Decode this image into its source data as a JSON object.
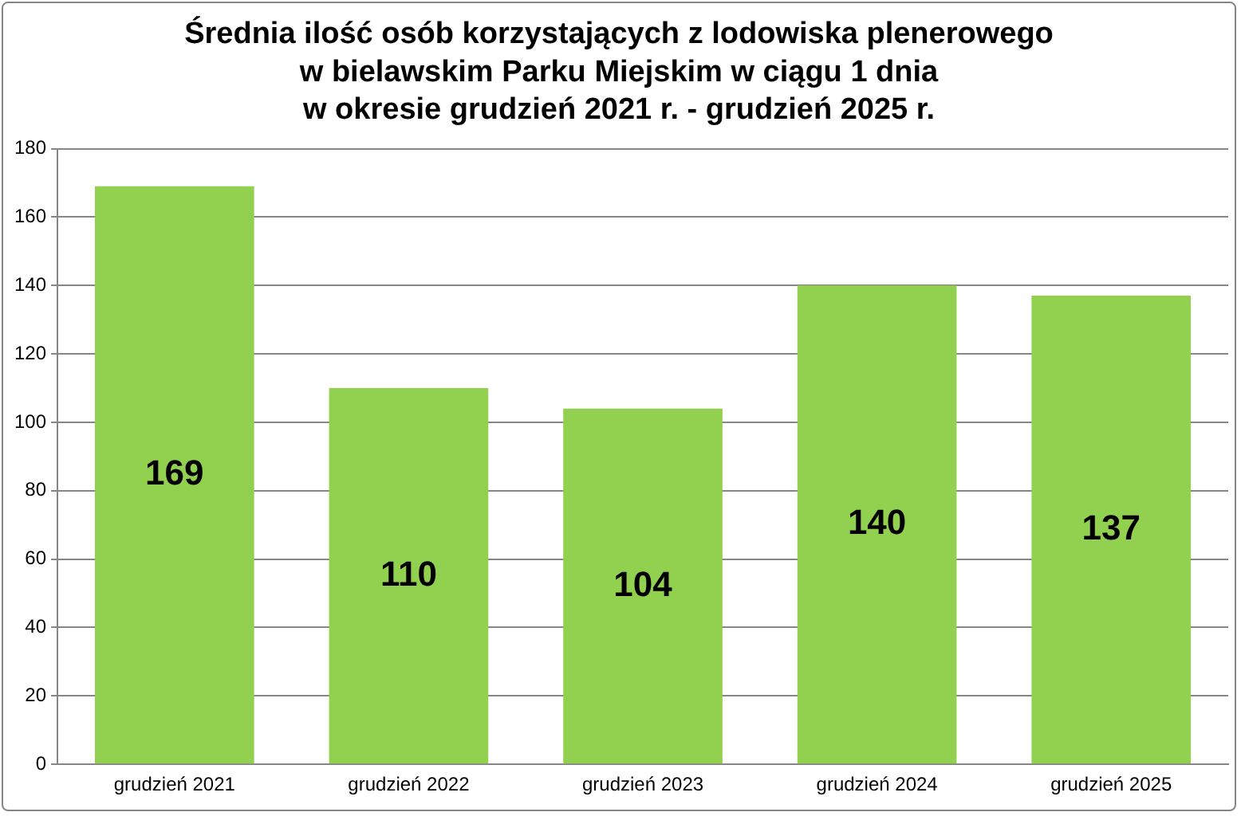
{
  "chart_data": {
    "type": "bar",
    "title": "Średnia ilość osób korzystających z lodowiska plenerowego\nw bielawskim Parku Miejskim w ciągu 1 dnia\nw okresie grudzień 2021 r. - grudzień 2025 r.",
    "categories": [
      "grudzień 2021",
      "grudzień 2022",
      "grudzień 2023",
      "grudzień 2024",
      "grudzień 2025"
    ],
    "values": [
      169,
      110,
      104,
      140,
      137
    ],
    "color": "#92d050",
    "ylim": [
      0,
      180
    ],
    "yticks": [
      0,
      20,
      40,
      60,
      80,
      100,
      120,
      140,
      160,
      180
    ],
    "grid": "y",
    "legend": false,
    "data_labels": true
  }
}
